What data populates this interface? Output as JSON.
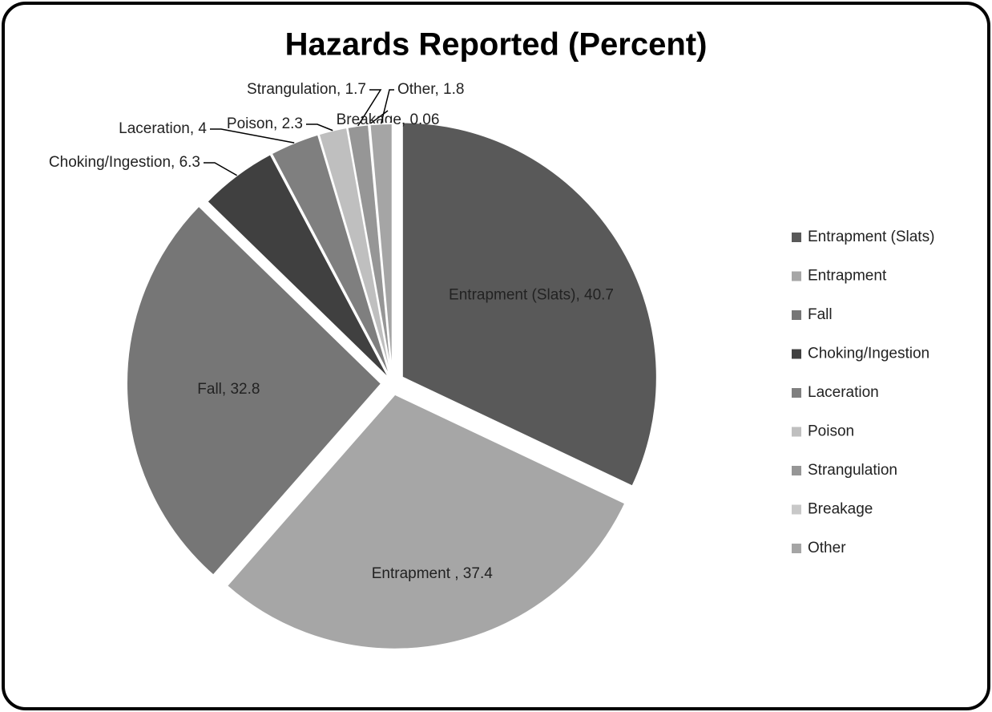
{
  "chart_data": {
    "type": "pie",
    "title": "Hazards Reported (Percent)",
    "categories": [
      "Entrapment (Slats)",
      "Entrapment ",
      "Fall",
      "Choking/Ingestion",
      "Laceration",
      "Poison",
      "Strangulation",
      "Breakage",
      "Other"
    ],
    "values": [
      40.7,
      37.4,
      32.8,
      6.3,
      4,
      2.3,
      1.7,
      0.06,
      1.8
    ],
    "value_labels": [
      "Entrapment (Slats), 40.7",
      "Entrapment , 37.4",
      "Fall, 32.8",
      "Choking/Ingestion, 6.3",
      "Laceration, 4",
      "Poison, 2.3",
      "Strangulation, 1.7",
      "Breakage, 0.06",
      "Other, 1.8"
    ],
    "colors": [
      "#595959",
      "#a6a6a6",
      "#767676",
      "#404040",
      "#7f7f7f",
      "#bfbfbf",
      "#969696",
      "#c8c8c8",
      "#a5a5a5"
    ],
    "legend": "right"
  }
}
